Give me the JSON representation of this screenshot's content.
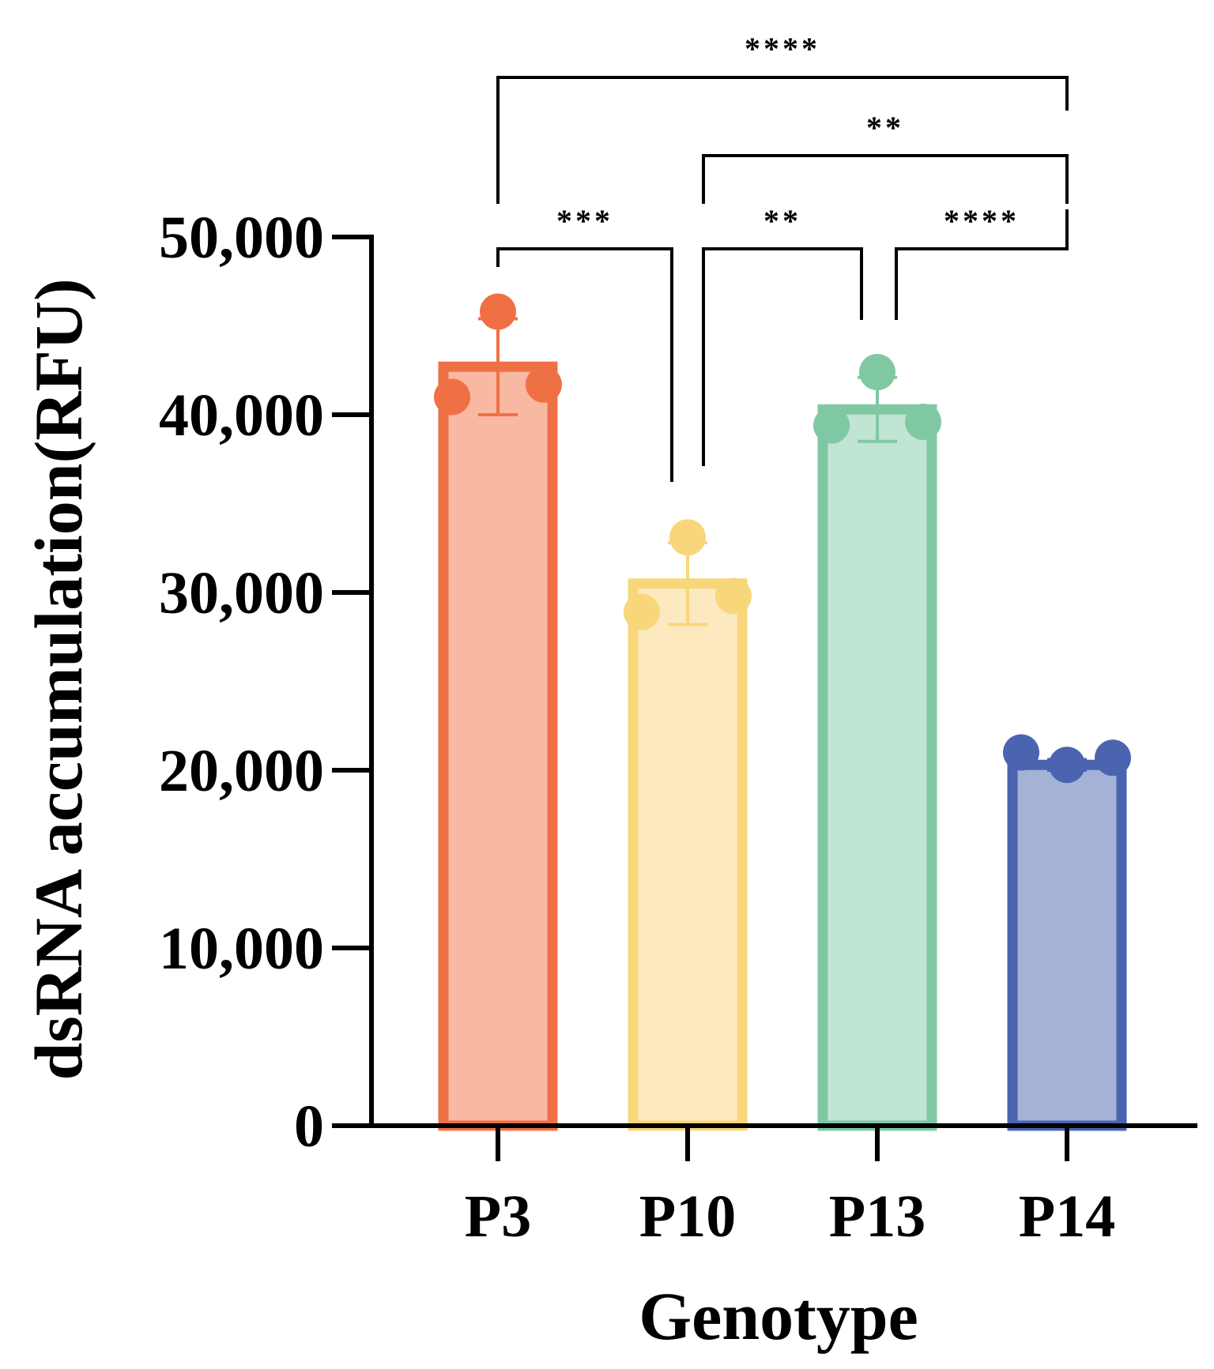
{
  "chart_data": {
    "type": "bar",
    "title": "",
    "xlabel": "Genotype",
    "ylabel": "dsRNA accumulation(RFU)",
    "ylim": [
      0,
      50000
    ],
    "yticks": [
      0,
      10000,
      20000,
      30000,
      40000,
      50000
    ],
    "ytick_labels": [
      "0",
      "10,000",
      "20,000",
      "30,000",
      "40,000",
      "50,000"
    ],
    "categories": [
      "P3",
      "P10",
      "P13",
      "P14"
    ],
    "values": [
      42700,
      30500,
      40300,
      20300
    ],
    "error": [
      2700,
      2300,
      1800,
      300
    ],
    "points": [
      [
        45800,
        41000,
        41700
      ],
      [
        33100,
        28900,
        29800
      ],
      [
        42400,
        39400,
        39600
      ],
      [
        20300,
        21000,
        20700
      ]
    ],
    "colors": {
      "fill": [
        "#f8b8a2",
        "#fce9c0",
        "#c0e5d2",
        "#a4b2d6"
      ],
      "stroke": [
        "#f07045",
        "#f8d67a",
        "#80c8a4",
        "#4a64b0"
      ]
    },
    "significance": [
      {
        "from": "P3",
        "to": "P10",
        "label": "***"
      },
      {
        "from": "P10",
        "to": "P13",
        "label": "**"
      },
      {
        "from": "P13",
        "to": "P14",
        "label": "****"
      },
      {
        "from": "P10",
        "to": "P14",
        "label": "**"
      },
      {
        "from": "P3",
        "to": "P14",
        "label": "****"
      }
    ]
  }
}
